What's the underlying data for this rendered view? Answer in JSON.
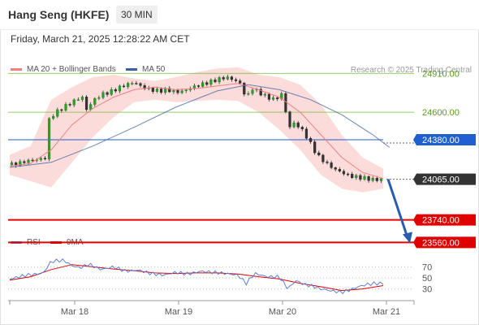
{
  "header": {
    "title": "Hang Seng (HKFE)",
    "timeframe": "30 MIN",
    "datetime": "Friday, March 21, 2025 12:28:22 AM CET",
    "credit": "Research © 2025 Trading Central"
  },
  "legend_main": [
    {
      "label": "MA 20 + Bollinger Bands",
      "color": "#f08080"
    },
    {
      "label": "MA 50",
      "color": "#3a5fa0"
    }
  ],
  "legend_rsi": [
    {
      "label": "RSI",
      "color": "#5b7fd6"
    },
    {
      "label": "9MA",
      "color": "#e00000"
    }
  ],
  "chart_data": [
    {
      "type": "candlestick",
      "x_labels": [
        "Mar 18",
        "Mar 19",
        "Mar 20",
        "Mar 21"
      ],
      "ylim": [
        23420,
        25120
      ],
      "current_price": 24065,
      "levels": [
        {
          "label": "24910.00",
          "value": 24910,
          "color": "#7fbf3f",
          "text_color": "#5a9a1a",
          "style": "resistance"
        },
        {
          "label": "24600.00",
          "value": 24600,
          "color": "#7fbf3f",
          "text_color": "#5a9a1a",
          "style": "resistance"
        },
        {
          "label": "24380.00",
          "value": 24380,
          "color": "#1f5fcf",
          "text_color": "#ffffff",
          "style": "pivot"
        },
        {
          "label": "24065.00",
          "value": 24065,
          "color": "#333333",
          "text_color": "#ffffff",
          "style": "last"
        },
        {
          "label": "23740.00",
          "value": 23740,
          "color": "#e00000",
          "text_color": "#ffffff",
          "style": "support"
        },
        {
          "label": "23560.00",
          "value": 23560,
          "color": "#e00000",
          "text_color": "#ffffff",
          "style": "support"
        }
      ],
      "close_path": [
        [
          0,
          24180
        ],
        [
          4,
          24190
        ],
        [
          8,
          24210
        ],
        [
          12,
          24220
        ],
        [
          16,
          24230
        ],
        [
          18,
          24240
        ],
        [
          19,
          24540
        ],
        [
          21,
          24580
        ],
        [
          24,
          24620
        ],
        [
          28,
          24660
        ],
        [
          32,
          24700
        ],
        [
          35,
          24720
        ],
        [
          37,
          24620
        ],
        [
          40,
          24690
        ],
        [
          44,
          24740
        ],
        [
          48,
          24760
        ],
        [
          52,
          24790
        ],
        [
          56,
          24820
        ],
        [
          60,
          24840
        ],
        [
          64,
          24800
        ],
        [
          68,
          24780
        ],
        [
          72,
          24770
        ],
        [
          76,
          24780
        ],
        [
          80,
          24760
        ],
        [
          84,
          24770
        ],
        [
          88,
          24800
        ],
        [
          92,
          24820
        ],
        [
          96,
          24840
        ],
        [
          100,
          24860
        ],
        [
          104,
          24880
        ],
        [
          108,
          24860
        ],
        [
          112,
          24820
        ],
        [
          114,
          24680
        ],
        [
          116,
          24800
        ],
        [
          120,
          24760
        ],
        [
          124,
          24720
        ],
        [
          128,
          24700
        ],
        [
          132,
          24760
        ],
        [
          134,
          24450
        ],
        [
          136,
          24520
        ],
        [
          140,
          24480
        ],
        [
          144,
          24380
        ],
        [
          148,
          24260
        ],
        [
          152,
          24200
        ],
        [
          156,
          24150
        ],
        [
          160,
          24120
        ],
        [
          164,
          24090
        ],
        [
          168,
          24080
        ],
        [
          172,
          24070
        ],
        [
          176,
          24060
        ],
        [
          180,
          24065
        ]
      ],
      "ma20_path": [
        [
          0,
          24170
        ],
        [
          10,
          24190
        ],
        [
          20,
          24300
        ],
        [
          30,
          24500
        ],
        [
          40,
          24630
        ],
        [
          50,
          24720
        ],
        [
          60,
          24780
        ],
        [
          70,
          24800
        ],
        [
          80,
          24780
        ],
        [
          90,
          24790
        ],
        [
          100,
          24810
        ],
        [
          110,
          24830
        ],
        [
          120,
          24780
        ],
        [
          130,
          24720
        ],
        [
          140,
          24600
        ],
        [
          150,
          24420
        ],
        [
          160,
          24240
        ],
        [
          170,
          24120
        ],
        [
          180,
          24070
        ]
      ],
      "ma50_path": [
        [
          0,
          24160
        ],
        [
          20,
          24200
        ],
        [
          40,
          24330
        ],
        [
          60,
          24480
        ],
        [
          80,
          24640
        ],
        [
          100,
          24770
        ],
        [
          115,
          24820
        ],
        [
          130,
          24780
        ],
        [
          145,
          24700
        ],
        [
          160,
          24580
        ],
        [
          175,
          24420
        ],
        [
          183,
          24320
        ]
      ],
      "bb_upper": [
        [
          0,
          24260
        ],
        [
          10,
          24330
        ],
        [
          20,
          24700
        ],
        [
          30,
          24800
        ],
        [
          40,
          24880
        ],
        [
          50,
          24900
        ],
        [
          60,
          24870
        ],
        [
          70,
          24850
        ],
        [
          80,
          24880
        ],
        [
          90,
          24920
        ],
        [
          100,
          24950
        ],
        [
          110,
          24960
        ],
        [
          120,
          24900
        ],
        [
          130,
          24880
        ],
        [
          140,
          24820
        ],
        [
          150,
          24660
        ],
        [
          160,
          24420
        ],
        [
          170,
          24240
        ],
        [
          180,
          24150
        ]
      ],
      "bb_lower": [
        [
          0,
          24100
        ],
        [
          10,
          24050
        ],
        [
          20,
          24000
        ],
        [
          30,
          24200
        ],
        [
          40,
          24400
        ],
        [
          50,
          24560
        ],
        [
          60,
          24680
        ],
        [
          70,
          24700
        ],
        [
          80,
          24680
        ],
        [
          90,
          24690
        ],
        [
          100,
          24700
        ],
        [
          110,
          24690
        ],
        [
          120,
          24600
        ],
        [
          130,
          24460
        ],
        [
          140,
          24300
        ],
        [
          150,
          24100
        ],
        [
          160,
          23990
        ],
        [
          170,
          23960
        ],
        [
          180,
          23990
        ]
      ],
      "projection": {
        "from": 24065,
        "to": 23560
      }
    },
    {
      "type": "line",
      "name": "RSI",
      "ylim": [
        0,
        100
      ],
      "y_ticks": [
        "70",
        "50",
        "30"
      ],
      "rsi_path": [
        [
          0,
          48
        ],
        [
          8,
          55
        ],
        [
          16,
          58
        ],
        [
          20,
          80
        ],
        [
          26,
          82
        ],
        [
          30,
          72
        ],
        [
          34,
          68
        ],
        [
          38,
          75
        ],
        [
          44,
          65
        ],
        [
          50,
          70
        ],
        [
          56,
          62
        ],
        [
          62,
          64
        ],
        [
          68,
          58
        ],
        [
          74,
          55
        ],
        [
          80,
          60
        ],
        [
          86,
          57
        ],
        [
          92,
          62
        ],
        [
          98,
          60
        ],
        [
          104,
          58
        ],
        [
          110,
          55
        ],
        [
          114,
          40
        ],
        [
          118,
          58
        ],
        [
          124,
          52
        ],
        [
          130,
          52
        ],
        [
          134,
          30
        ],
        [
          138,
          45
        ],
        [
          142,
          38
        ],
        [
          146,
          35
        ],
        [
          150,
          30
        ],
        [
          156,
          26
        ],
        [
          160,
          24
        ],
        [
          164,
          28
        ],
        [
          168,
          34
        ],
        [
          172,
          38
        ],
        [
          176,
          40
        ],
        [
          180,
          40
        ]
      ],
      "ma9_path": [
        [
          0,
          46
        ],
        [
          10,
          52
        ],
        [
          20,
          65
        ],
        [
          30,
          74
        ],
        [
          40,
          70
        ],
        [
          50,
          66
        ],
        [
          60,
          63
        ],
        [
          70,
          59
        ],
        [
          80,
          58
        ],
        [
          90,
          59
        ],
        [
          100,
          59
        ],
        [
          110,
          57
        ],
        [
          120,
          52
        ],
        [
          130,
          48
        ],
        [
          140,
          40
        ],
        [
          150,
          34
        ],
        [
          160,
          27
        ],
        [
          170,
          30
        ],
        [
          180,
          36
        ]
      ]
    }
  ]
}
